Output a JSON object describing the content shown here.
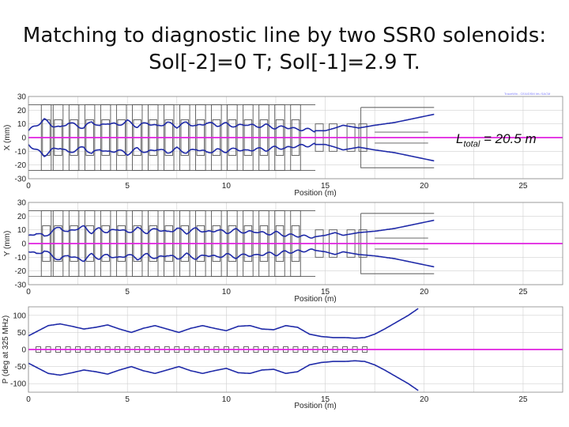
{
  "title_line1": "Matching to diagnostic line by two SSR0 solenoids:",
  "title_line2": "Sol[-2]=0 T;  Sol[-1]=2.9 T.",
  "annotation": {
    "symbol": "L",
    "subscript": "total",
    "text": " = 20.5 m"
  },
  "credit": "TraceWin - CEA/DSM Irfu SACM",
  "colors": {
    "envelope": "#1f2aa8",
    "axis_line": "#e020e0",
    "elements": "#555555",
    "grid": "#d0d0d0"
  },
  "chart_data": [
    {
      "type": "line",
      "name": "x-envelope",
      "ylabel": "X (mm)",
      "xlabel": "Position (m)",
      "xlim": [
        0,
        27
      ],
      "ylim": [
        -30,
        30
      ],
      "xticks": [
        "0",
        "5",
        "10",
        "15",
        "20",
        "25"
      ],
      "yticks": [
        "30",
        "20",
        "10",
        "0",
        "-10",
        "-20",
        "-30"
      ],
      "series": [
        {
          "name": "envelope",
          "x": [
            0,
            0.4,
            0.8,
            1.2,
            1.6,
            2.0,
            2.4,
            2.8,
            3.2,
            3.6,
            4.0,
            4.5,
            5.0,
            5.5,
            6.0,
            6.5,
            7.0,
            7.5,
            8.0,
            8.5,
            9.0,
            9.5,
            10.0,
            10.5,
            11.0,
            11.5,
            12.0,
            12.5,
            13.0,
            13.5,
            14.0,
            14.5,
            15.0,
            15.5,
            15.9,
            16.3,
            16.7,
            17.5,
            18.5,
            19.5,
            20.5
          ],
          "y": [
            5,
            9,
            13,
            9,
            7,
            11,
            9,
            7,
            12,
            8,
            11,
            9,
            12,
            8,
            11,
            8,
            11,
            8,
            11,
            8,
            11,
            9,
            10,
            8,
            10,
            8,
            9,
            7,
            8,
            6,
            6,
            5,
            5,
            7,
            9,
            8,
            7,
            9,
            11,
            14,
            17
          ]
        },
        {
          "name": "reference",
          "x": [
            0,
            27
          ],
          "y": [
            0,
            0
          ]
        }
      ]
    },
    {
      "type": "line",
      "name": "y-envelope",
      "ylabel": "Y (mm)",
      "xlabel": "Position (m)",
      "xlim": [
        0,
        27
      ],
      "ylim": [
        -30,
        30
      ],
      "xticks": [
        "0",
        "5",
        "10",
        "15",
        "20",
        "25"
      ],
      "yticks": [
        "30",
        "20",
        "10",
        "0",
        "-10",
        "-20",
        "-30"
      ],
      "series": [
        {
          "name": "envelope",
          "x": [
            0,
            0.4,
            0.8,
            1.2,
            1.6,
            2.0,
            2.4,
            2.8,
            3.2,
            3.6,
            4.0,
            4.5,
            5.0,
            5.5,
            6.0,
            6.5,
            7.0,
            7.5,
            8.0,
            8.5,
            9.0,
            9.5,
            10.0,
            10.5,
            11.0,
            11.5,
            12.0,
            12.5,
            13.0,
            13.5,
            14.0,
            14.5,
            15.0,
            15.5,
            15.9,
            16.3,
            16.7,
            17.5,
            18.5,
            19.5,
            20.5
          ],
          "y": [
            5,
            8,
            5,
            9,
            12,
            8,
            11,
            12,
            8,
            11,
            8,
            11,
            8,
            11,
            8,
            11,
            8,
            11,
            8,
            11,
            8,
            10,
            8,
            10,
            8,
            9,
            7,
            8,
            6,
            6,
            5,
            5,
            6,
            8,
            6,
            7,
            8,
            9,
            11,
            14,
            17
          ]
        },
        {
          "name": "reference",
          "x": [
            0,
            27
          ],
          "y": [
            0,
            0
          ]
        }
      ]
    },
    {
      "type": "line",
      "name": "phase-envelope",
      "ylabel": "P (deg at 325 MHz)",
      "xlabel": "Position (m)",
      "xlim": [
        0,
        27
      ],
      "ylim": [
        -125,
        125
      ],
      "xticks": [
        "0",
        "5",
        "10",
        "15",
        "20",
        "25"
      ],
      "yticks": [
        "100",
        "50",
        "0",
        "-50",
        "-100"
      ],
      "series": [
        {
          "name": "envelope",
          "x": [
            0,
            0.5,
            1.0,
            1.6,
            2.2,
            2.8,
            3.4,
            4.0,
            4.6,
            5.2,
            5.8,
            6.4,
            7.0,
            7.6,
            8.2,
            8.8,
            9.4,
            10.0,
            10.6,
            11.2,
            11.8,
            12.4,
            13.0,
            13.6,
            14.2,
            14.8,
            15.4,
            16.0,
            16.5,
            17.0,
            17.5,
            18.0,
            18.6,
            19.2,
            19.7
          ],
          "y": [
            40,
            55,
            70,
            75,
            68,
            60,
            65,
            72,
            60,
            50,
            62,
            70,
            60,
            50,
            62,
            70,
            62,
            55,
            68,
            70,
            60,
            58,
            70,
            65,
            45,
            38,
            35,
            35,
            33,
            35,
            45,
            60,
            80,
            100,
            120
          ]
        },
        {
          "name": "reference",
          "x": [
            0,
            27
          ],
          "y": [
            0,
            0
          ]
        }
      ]
    }
  ]
}
